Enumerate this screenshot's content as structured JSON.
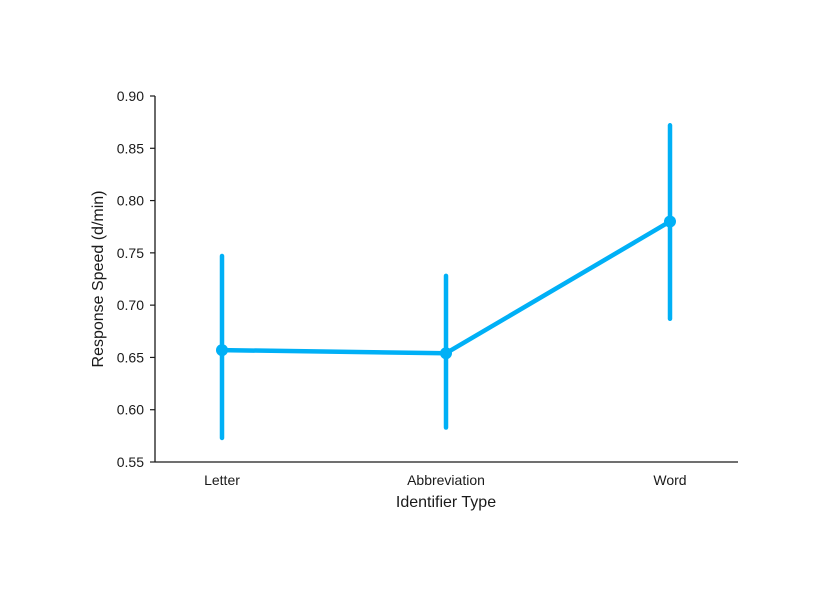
{
  "chart_data": {
    "type": "line",
    "title": "",
    "xlabel": "Identifier Type",
    "ylabel": "Response Speed (d/min)",
    "categories": [
      "Letter",
      "Abbreviation",
      "Word"
    ],
    "series": [
      {
        "values": [
          0.657,
          0.654,
          0.78
        ],
        "error_low": [
          0.573,
          0.583,
          0.687
        ],
        "error_high": [
          0.747,
          0.728,
          0.872
        ],
        "color": "#00B0F6"
      }
    ],
    "ylim": [
      0.55,
      0.9
    ],
    "yticks": [
      "0.55",
      "0.60",
      "0.65",
      "0.70",
      "0.75",
      "0.80",
      "0.85",
      "0.90"
    ],
    "grid": false,
    "legend": "none"
  }
}
